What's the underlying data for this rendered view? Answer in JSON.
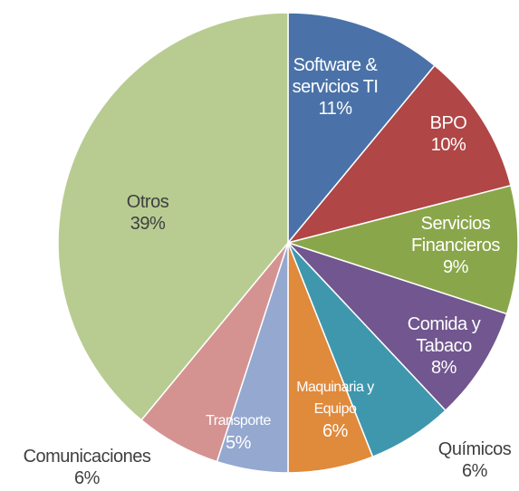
{
  "chart_data": {
    "type": "pie",
    "categories": [
      "Software & servicios TI",
      "BPO",
      "Servicios Financieros",
      "Comida y Tabaco",
      "Químicos",
      "Maquinaria y Equipo",
      "Transporte",
      "Comunicaciones",
      "Otros"
    ],
    "values": [
      11,
      10,
      9,
      8,
      6,
      6,
      5,
      6,
      39
    ],
    "value_labels": [
      "11%",
      "10%",
      "9%",
      "8%",
      "6%",
      "6%",
      "5%",
      "6%",
      "39%"
    ],
    "colors": [
      "#4a72a8",
      "#b04645",
      "#8aa64a",
      "#71568f",
      "#3f97ad",
      "#e08a3c",
      "#94a8d0",
      "#d49391",
      "#b8cc92"
    ]
  }
}
